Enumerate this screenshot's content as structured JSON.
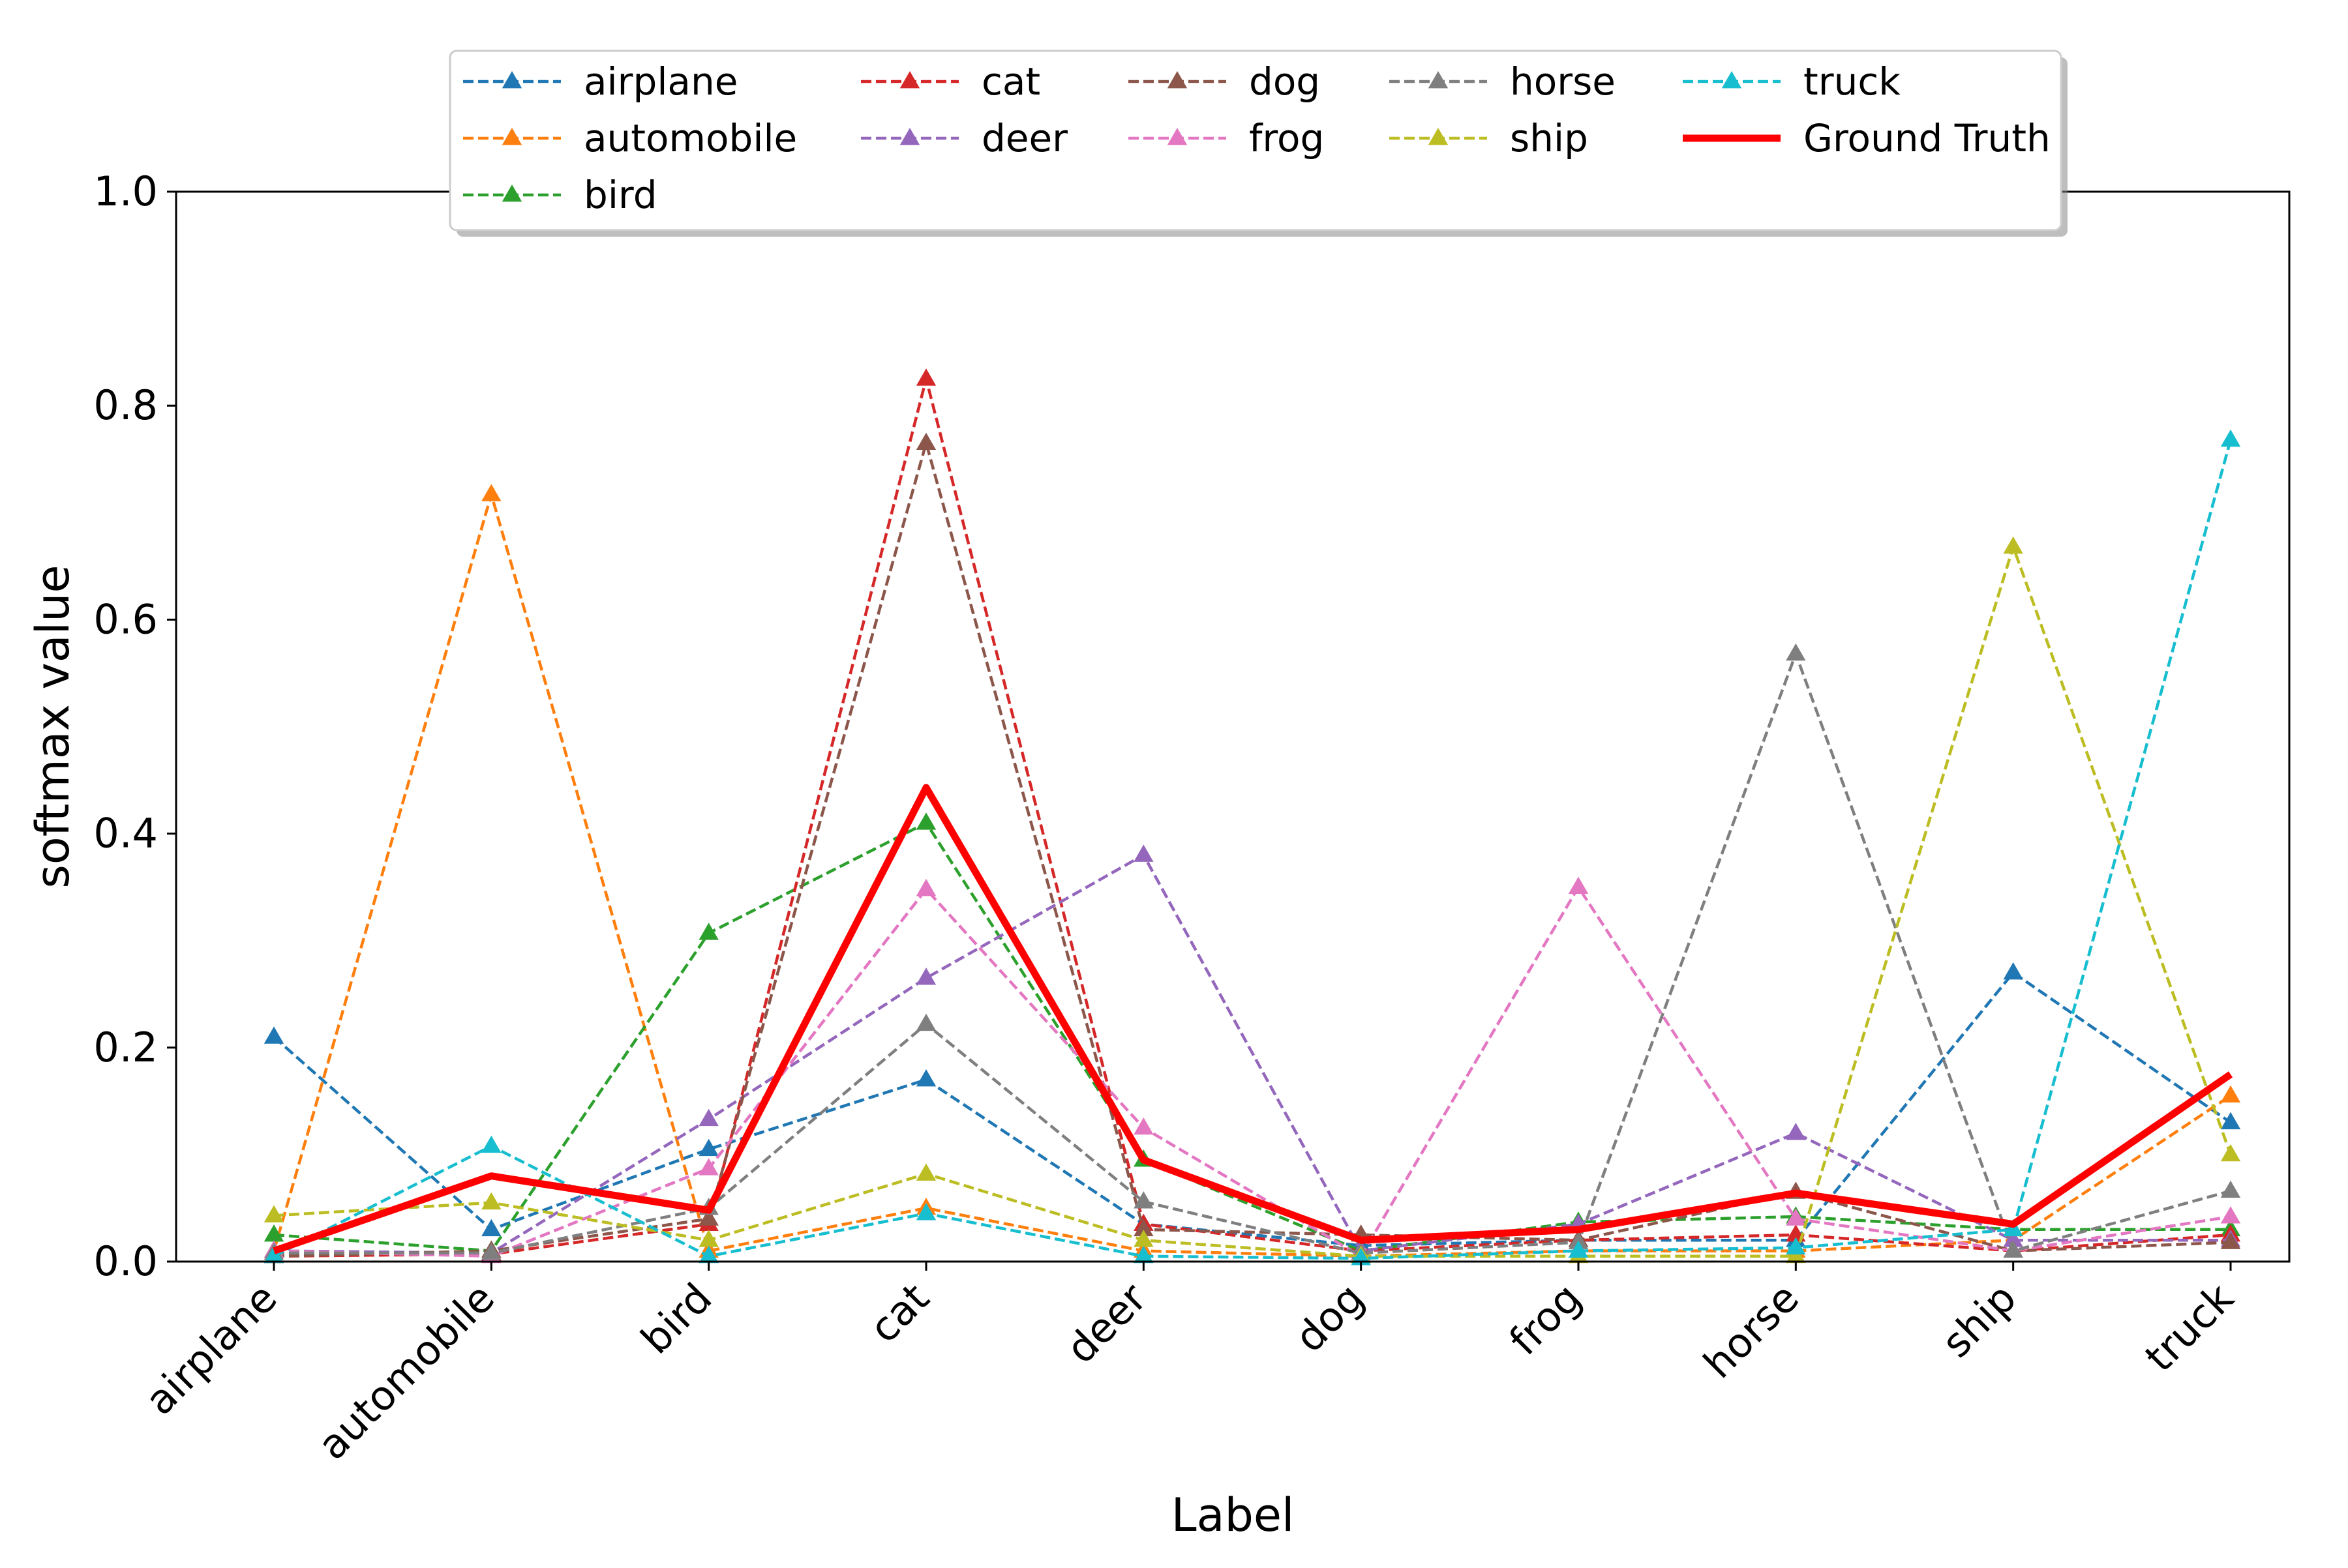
{
  "chart_data": {
    "type": "line",
    "title": "",
    "xlabel": "Label",
    "ylabel": "softmax value",
    "ylim": [
      0.0,
      1.0
    ],
    "yticks": [
      "0.0",
      "0.2",
      "0.4",
      "0.6",
      "0.8",
      "1.0"
    ],
    "categories": [
      "airplane",
      "automobile",
      "bird",
      "cat",
      "deer",
      "dog",
      "frog",
      "horse",
      "ship",
      "truck"
    ],
    "legend_position": "top-center",
    "series": [
      {
        "name": "airplane",
        "color": "#1f77b4",
        "style": "dashed",
        "marker": "triangle",
        "values": [
          0.21,
          0.03,
          0.105,
          0.17,
          0.035,
          0.015,
          0.02,
          0.02,
          0.27,
          0.13
        ]
      },
      {
        "name": "automobile",
        "color": "#ff7f0e",
        "style": "dashed",
        "marker": "triangle",
        "values": [
          0.01,
          0.717,
          0.01,
          0.05,
          0.01,
          0.005,
          0.01,
          0.01,
          0.02,
          0.155
        ]
      },
      {
        "name": "bird",
        "color": "#2ca02c",
        "style": "dashed",
        "marker": "triangle",
        "values": [
          0.025,
          0.01,
          0.307,
          0.41,
          0.095,
          0.01,
          0.037,
          0.042,
          0.03,
          0.03
        ]
      },
      {
        "name": "cat",
        "color": "#d62728",
        "style": "dashed",
        "marker": "triangle",
        "values": [
          0.005,
          0.007,
          0.035,
          0.825,
          0.035,
          0.01,
          0.02,
          0.025,
          0.01,
          0.025
        ]
      },
      {
        "name": "deer",
        "color": "#9467bd",
        "style": "dashed",
        "marker": "triangle",
        "values": [
          0.01,
          0.008,
          0.133,
          0.265,
          0.38,
          0.01,
          0.035,
          0.12,
          0.02,
          0.02
        ]
      },
      {
        "name": "dog",
        "color": "#8c564b",
        "style": "dashed",
        "marker": "triangle",
        "values": [
          0.005,
          0.01,
          0.04,
          0.765,
          0.03,
          0.025,
          0.02,
          0.065,
          0.01,
          0.018
        ]
      },
      {
        "name": "frog",
        "color": "#e377c2",
        "style": "dashed",
        "marker": "triangle",
        "values": [
          0.01,
          0.005,
          0.087,
          0.348,
          0.125,
          0.005,
          0.35,
          0.04,
          0.01,
          0.042
        ]
      },
      {
        "name": "horse",
        "color": "#7f7f7f",
        "style": "dashed",
        "marker": "triangle",
        "values": [
          0.008,
          0.008,
          0.05,
          0.222,
          0.056,
          0.008,
          0.018,
          0.568,
          0.01,
          0.066
        ]
      },
      {
        "name": "ship",
        "color": "#bcbd22",
        "style": "dashed",
        "marker": "triangle",
        "values": [
          0.043,
          0.055,
          0.02,
          0.082,
          0.02,
          0.005,
          0.005,
          0.005,
          0.668,
          0.1
        ]
      },
      {
        "name": "truck",
        "color": "#17becf",
        "style": "dashed",
        "marker": "triangle",
        "values": [
          0.005,
          0.108,
          0.005,
          0.045,
          0.005,
          0.003,
          0.01,
          0.013,
          0.03,
          0.768
        ]
      },
      {
        "name": "Ground Truth",
        "color": "#ff0000",
        "style": "solid",
        "marker": "none",
        "values": [
          0.01,
          0.08,
          0.048,
          0.443,
          0.095,
          0.02,
          0.03,
          0.064,
          0.035,
          0.175
        ]
      }
    ]
  }
}
